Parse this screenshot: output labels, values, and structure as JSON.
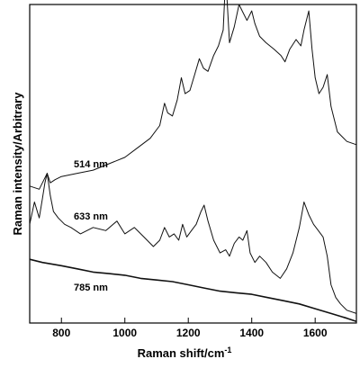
{
  "chart_data": {
    "type": "line",
    "title": "",
    "xlabel": "Raman shift/cm",
    "xlabel_superscript": "-1",
    "ylabel": "Raman intensity/Arbitrary",
    "xlim": [
      700,
      1730
    ],
    "ylim": [
      0,
      100
    ],
    "x_ticks": [
      800,
      1000,
      1200,
      1400,
      1600
    ],
    "x_tick_labels": [
      "800",
      "1000",
      "1200",
      "1400",
      "1600"
    ],
    "y_ticks_labeled": false,
    "grid": false,
    "annotations": [
      "514 nm",
      "633 nm",
      "785 nm"
    ],
    "series": [
      {
        "name": "514 nm",
        "x": [
          700,
          730,
          745,
          755,
          765,
          780,
          800,
          850,
          900,
          950,
          1000,
          1040,
          1080,
          1110,
          1125,
          1135,
          1150,
          1165,
          1178,
          1190,
          1205,
          1220,
          1235,
          1248,
          1262,
          1280,
          1295,
          1310,
          1318,
          1330,
          1345,
          1360,
          1370,
          1385,
          1400,
          1410,
          1425,
          1445,
          1470,
          1492,
          1505,
          1520,
          1540,
          1555,
          1565,
          1580,
          1590,
          1600,
          1612,
          1625,
          1638,
          1650,
          1670,
          1700,
          1730
        ],
        "y": [
          43,
          42,
          45,
          47,
          44,
          45,
          46,
          47,
          48,
          50,
          52,
          55,
          58,
          62,
          69,
          66,
          65,
          70,
          77,
          72,
          73,
          78,
          83,
          80,
          79,
          84,
          87,
          92,
          109,
          88,
          93,
          100,
          98,
          95,
          98,
          94,
          90,
          88,
          86,
          84,
          82,
          86,
          89,
          87,
          92,
          98,
          86,
          77,
          72,
          74,
          78,
          68,
          60,
          57,
          56
        ]
      },
      {
        "name": "633 nm",
        "x": [
          700,
          715,
          730,
          740,
          748,
          755,
          765,
          775,
          790,
          810,
          830,
          860,
          900,
          940,
          975,
          1000,
          1030,
          1060,
          1090,
          1110,
          1125,
          1140,
          1155,
          1170,
          1182,
          1195,
          1210,
          1225,
          1240,
          1250,
          1262,
          1280,
          1300,
          1318,
          1330,
          1345,
          1360,
          1372,
          1385,
          1395,
          1410,
          1425,
          1445,
          1465,
          1490,
          1510,
          1530,
          1550,
          1565,
          1580,
          1595,
          1610,
          1625,
          1638,
          1650,
          1665,
          1680,
          1700,
          1730
        ],
        "y": [
          31,
          38,
          33,
          39,
          44,
          47,
          40,
          35,
          33,
          31,
          30,
          28,
          30,
          29,
          32,
          28,
          30,
          27,
          24,
          26,
          30,
          27,
          28,
          26,
          31,
          27,
          29,
          31,
          35,
          37,
          32,
          26,
          22,
          23,
          21,
          25,
          27,
          26,
          29,
          22,
          19,
          21,
          19,
          16,
          14,
          17,
          22,
          30,
          38,
          34,
          31,
          29,
          27,
          21,
          12,
          8,
          6,
          4,
          3
        ]
      },
      {
        "name": "785 nm",
        "x": [
          700,
          740,
          800,
          850,
          900,
          950,
          1000,
          1050,
          1100,
          1150,
          1200,
          1250,
          1300,
          1350,
          1400,
          1450,
          1500,
          1550,
          1600,
          1650,
          1700,
          1730
        ],
        "y": [
          20,
          19,
          18,
          17,
          16,
          15.5,
          15,
          14,
          13.5,
          13,
          12,
          11,
          10,
          9.5,
          9,
          8,
          7,
          6,
          4.5,
          3,
          1.5,
          0.5
        ]
      }
    ]
  }
}
